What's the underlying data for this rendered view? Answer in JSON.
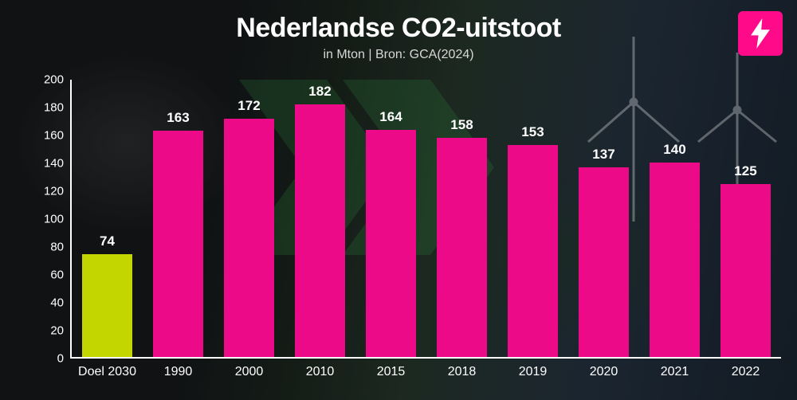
{
  "title": "Nederlandse CO2-uitstoot",
  "subtitle": "in Mton | Bron: GCA(2024)",
  "brand": {
    "badge_color": "#ff0a88",
    "bolt_color": "#ffffff"
  },
  "chevron_color": "#2e8b3e",
  "chart": {
    "type": "bar",
    "ylim": [
      0,
      200
    ],
    "ytick_step": 20,
    "yticks": [
      0,
      20,
      40,
      60,
      80,
      100,
      120,
      140,
      160,
      180,
      200
    ],
    "axis_color": "#ffffff",
    "tick_label_color": "#ffffff",
    "tick_fontsize": 15,
    "title_color": "#ffffff",
    "title_fontsize": 34,
    "subtitle_color": "#d8d8d8",
    "subtitle_fontsize": 16,
    "value_label_color": "#ffffff",
    "value_label_fontsize": 17,
    "x_label_fontsize": 16,
    "bar_width": 0.7,
    "background_overlay": "rgba(0,0,0,0.35)",
    "series": [
      {
        "category": "Doel 2030",
        "value": 74,
        "color": "#c4d600"
      },
      {
        "category": "1990",
        "value": 163,
        "color": "#ec0a88"
      },
      {
        "category": "2000",
        "value": 172,
        "color": "#ec0a88"
      },
      {
        "category": "2010",
        "value": 182,
        "color": "#ec0a88"
      },
      {
        "category": "2015",
        "value": 164,
        "color": "#ec0a88"
      },
      {
        "category": "2018",
        "value": 158,
        "color": "#ec0a88"
      },
      {
        "category": "2019",
        "value": 153,
        "color": "#ec0a88"
      },
      {
        "category": "2020",
        "value": 137,
        "color": "#ec0a88"
      },
      {
        "category": "2021",
        "value": 140,
        "color": "#ec0a88"
      },
      {
        "category": "2022",
        "value": 125,
        "color": "#ec0a88"
      }
    ]
  }
}
